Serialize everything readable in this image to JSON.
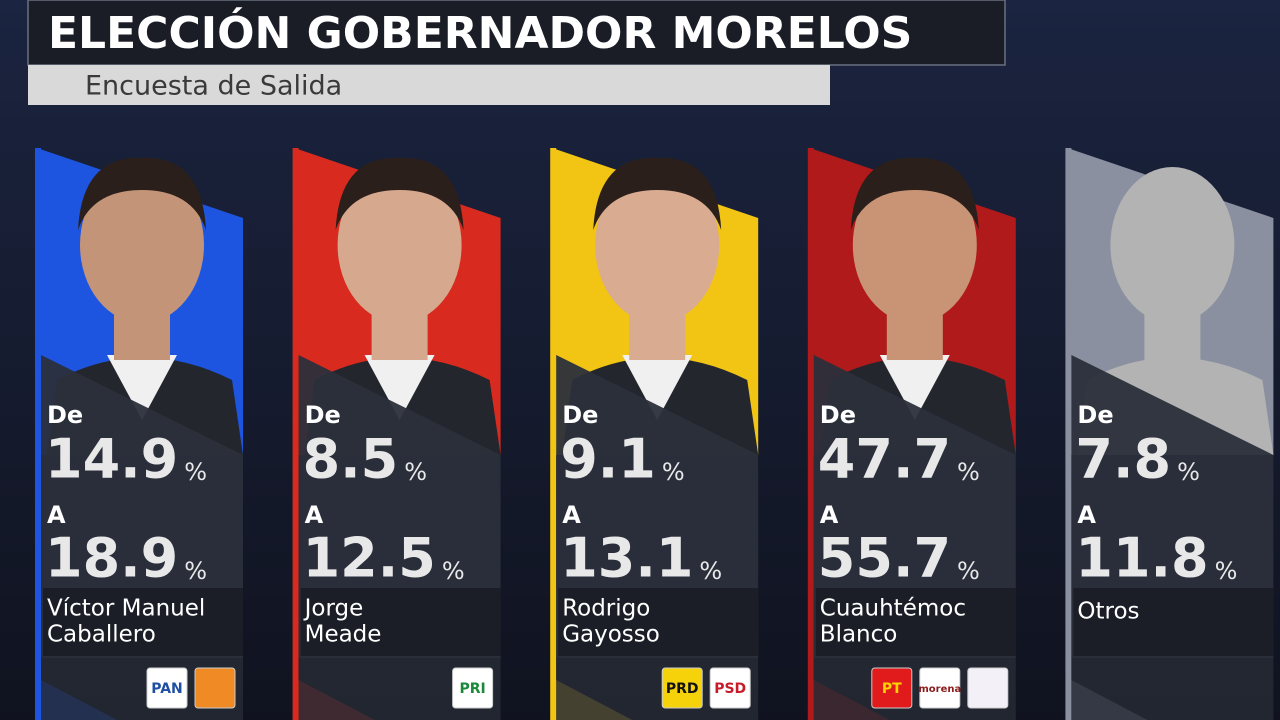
{
  "header": {
    "title": "ELECCIÓN GOBERNADOR MORELOS",
    "subtitle": "Encuesta de Salida"
  },
  "from_label": "De",
  "to_label": "A",
  "unit": "%",
  "candidates": [
    {
      "color": "#1d55e0",
      "skin": "#c49478",
      "from": 14.9,
      "to": 18.9,
      "name": [
        "Víctor Manuel",
        "Caballero"
      ],
      "logos": [
        {
          "text": "PAN",
          "color": "#ffffff",
          "ink": "#1f4fa0"
        },
        {
          "color": "#f08a24"
        }
      ]
    },
    {
      "color": "#d82a1f",
      "skin": "#d6a98e",
      "from": 8.5,
      "to": 12.5,
      "name": [
        "Jorge",
        "Meade"
      ],
      "logos": [
        {
          "text": "PRI",
          "color": "#ffffff",
          "ink": "#1a8a3a"
        }
      ]
    },
    {
      "color": "#f2c414",
      "skin": "#d9ab90",
      "from": 9.1,
      "to": 13.1,
      "name": [
        "Rodrigo",
        "Gayosso"
      ],
      "logos": [
        {
          "text": "PRD",
          "color": "#f5d20a",
          "ink": "#111111"
        },
        {
          "text": "PSD",
          "color": "#ffffff",
          "ink": "#c81b2a"
        }
      ]
    },
    {
      "color": "#b01a1a",
      "skin": "#c99476",
      "from": 47.7,
      "to": 55.7,
      "name": [
        "Cuauhtémoc",
        "Blanco"
      ],
      "logos": [
        {
          "text": "PT",
          "color": "#e11b1b",
          "ink": "#ffd400"
        },
        {
          "text": "morena",
          "color": "#ffffff",
          "ink": "#8a1c1c"
        },
        {
          "color": "#f4f0f8"
        }
      ]
    },
    {
      "color": "#8a90a0",
      "skin": "#b3b3b3",
      "from": 7.8,
      "to": 11.8,
      "name": [
        "Otros"
      ],
      "logos": []
    }
  ]
}
